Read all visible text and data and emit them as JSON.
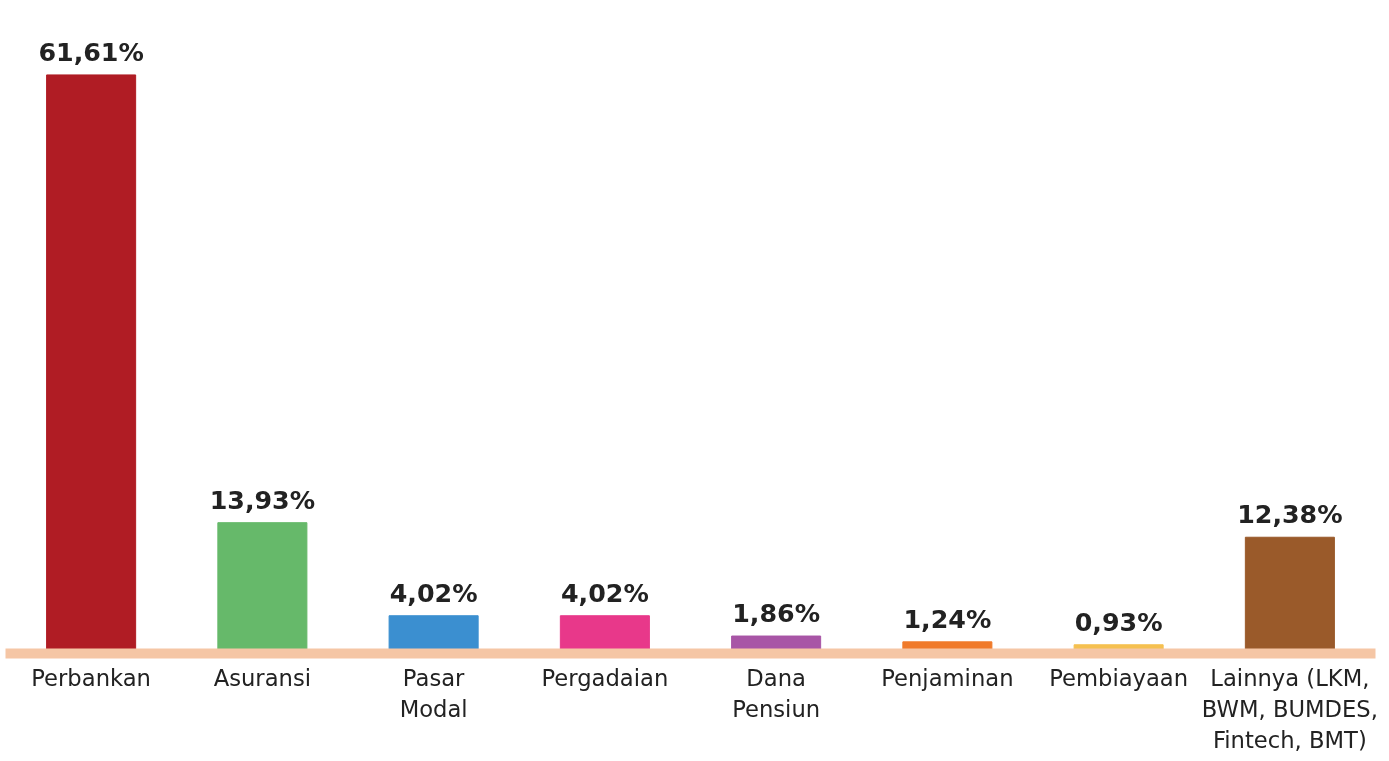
{
  "chart_data": {
    "type": "bar",
    "categories": [
      "Perbankan",
      "Asuransi",
      "Pasar\nModal",
      "Pergadaian",
      "Dana\nPensiun",
      "Penjaminan",
      "Pembiayaan",
      "Lainnya (LKM,\nBWM, BUMDES,\nFintech, BMT)"
    ],
    "values": [
      61.61,
      13.93,
      4.02,
      4.02,
      1.86,
      1.24,
      0.93,
      12.38
    ],
    "colors": [
      "#b01c24",
      "#66b96a",
      "#3b8fd0",
      "#e8388a",
      "#a855a6",
      "#f07a2a",
      "#f5c050",
      "#9a5a2a"
    ],
    "value_labels": [
      "61,61%",
      "13,93%",
      "4,02%",
      "4,02%",
      "1,86%",
      "1,24%",
      "0,93%",
      "12,38%"
    ],
    "grid": false
  }
}
